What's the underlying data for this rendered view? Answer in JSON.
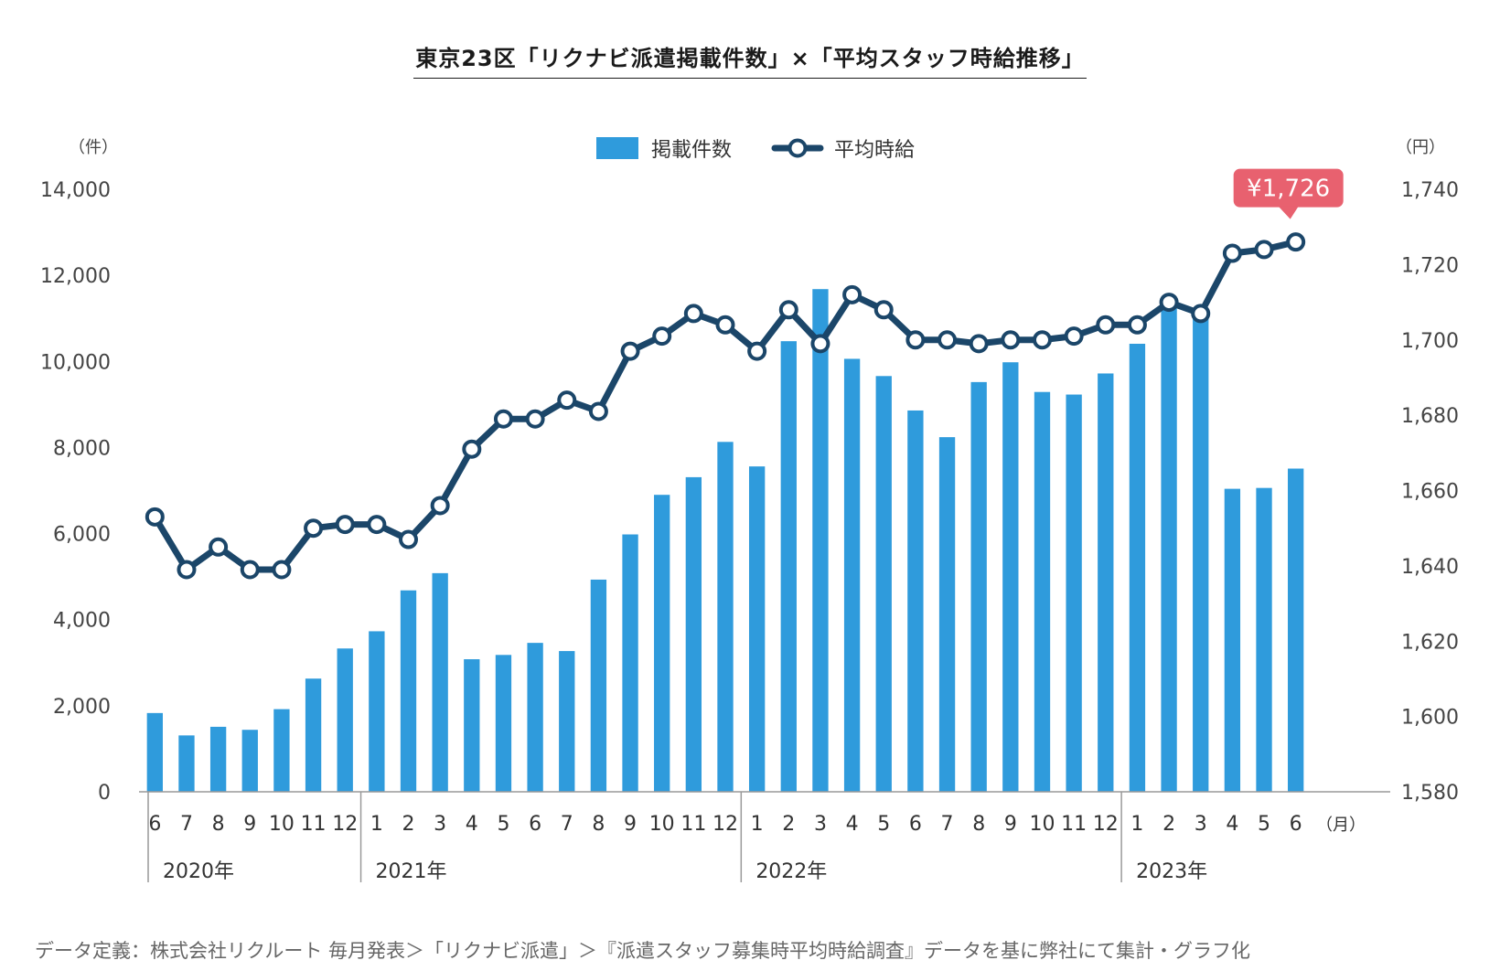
{
  "title": "東京23区「リクナビ派遣掲載件数」×「平均スタッフ時給推移」",
  "source_note": "データ定義：株式会社リクルート 毎月発表＞「リクナビ派遣」＞『派遣スタッフ募集時平均時給調査』データを基に弊社にて集計・グラフ化",
  "colors": {
    "bar": "#2f9bdc",
    "line": "#1b4669",
    "callout": "#e8616f",
    "axis": "#999999"
  },
  "chart_data": {
    "type": "bar+line",
    "categories": [
      "6",
      "7",
      "8",
      "9",
      "10",
      "11",
      "12",
      "1",
      "2",
      "3",
      "4",
      "5",
      "6",
      "7",
      "8",
      "9",
      "10",
      "11",
      "12",
      "1",
      "2",
      "3",
      "4",
      "5",
      "6",
      "7",
      "8",
      "9",
      "10",
      "11",
      "12",
      "1",
      "2",
      "3",
      "4",
      "5",
      "6"
    ],
    "years": [
      {
        "label": "2020年",
        "start": 0,
        "end": 6
      },
      {
        "label": "2021年",
        "start": 7,
        "end": 18
      },
      {
        "label": "2022年",
        "start": 19,
        "end": 30
      },
      {
        "label": "2023年",
        "start": 31,
        "end": 36
      }
    ],
    "month_unit": "（月）",
    "left_axis": {
      "unit": "（件）",
      "min": 0,
      "max": 14000,
      "ticks": [
        "0",
        "2,000",
        "4,000",
        "6,000",
        "8,000",
        "10,000",
        "12,000",
        "14,000"
      ]
    },
    "right_axis": {
      "unit": "（円）",
      "min": 1580,
      "max": 1740,
      "ticks": [
        "1,580",
        "1,600",
        "1,620",
        "1,640",
        "1,660",
        "1,680",
        "1,700",
        "1,720",
        "1,740"
      ]
    },
    "series": [
      {
        "name": "掲載件数",
        "type": "bar",
        "axis": "left",
        "values": [
          1830,
          1310,
          1510,
          1440,
          1920,
          2630,
          3330,
          3730,
          4680,
          5080,
          3080,
          3180,
          3460,
          3270,
          4930,
          5980,
          6900,
          7310,
          8130,
          7560,
          10470,
          11680,
          10060,
          9660,
          8860,
          8240,
          9520,
          9980,
          9290,
          9230,
          9720,
          10410,
          11260,
          11130,
          7040,
          7060,
          7510
        ]
      },
      {
        "name": "平均時給",
        "type": "line",
        "axis": "right",
        "values": [
          1653,
          1639,
          1645,
          1639,
          1639,
          1650,
          1651,
          1651,
          1647,
          1656,
          1671,
          1679,
          1679,
          1684,
          1681,
          1697,
          1701,
          1707,
          1704,
          1697,
          1708,
          1699,
          1712,
          1708,
          1700,
          1700,
          1699,
          1700,
          1700,
          1701,
          1704,
          1704,
          1710,
          1707,
          1723,
          1724,
          1726
        ]
      }
    ],
    "callout": {
      "text": "¥1,726",
      "index": 36
    }
  }
}
